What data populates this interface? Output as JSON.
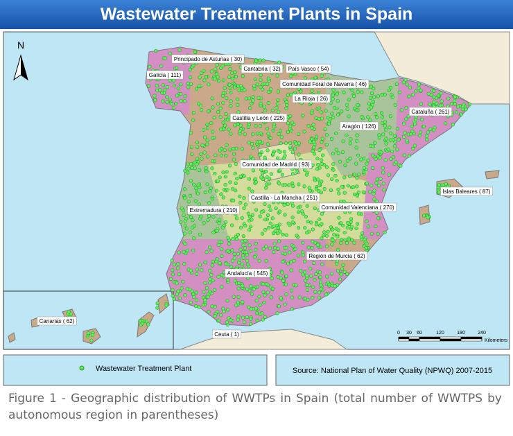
{
  "header": {
    "title": "Wastewater Treatment Plants in Spain"
  },
  "map": {
    "north_label": "N",
    "regions": [
      {
        "label": "Principado de Asturias ( 30)"
      },
      {
        "label": "Cantabria ( 32)"
      },
      {
        "label": "País Vasco ( 54)"
      },
      {
        "label": "Comunidad Foral de Navarra ( 46)"
      },
      {
        "label": "La Rioja ( 26)"
      },
      {
        "label": "Galicia ( 111)"
      },
      {
        "label": "Castilla y León ( 225)"
      },
      {
        "label": "Aragón ( 126)"
      },
      {
        "label": "Cataluña ( 261)"
      },
      {
        "label": "Comunidad de Madrid ( 93)"
      },
      {
        "label": "Islas Baleares ( 87)"
      },
      {
        "label": "Castilla - La Mancha ( 251)"
      },
      {
        "label": "Comunidad Valenciana ( 270)"
      },
      {
        "label": "Extremadura ( 210)"
      },
      {
        "label": "Región de Murcia ( 62)"
      },
      {
        "label": "Andalucía ( 545)"
      },
      {
        "label": "Canarias ( 62)"
      },
      {
        "label": "Ceuta ( 1)"
      }
    ],
    "scale_bar": {
      "ticks": [
        0,
        30,
        60,
        120,
        180,
        240
      ],
      "unit": "Kilometers"
    }
  },
  "legend": {
    "item": "Wastewater Treatment Plant"
  },
  "source": "Source: National Plan of Water Quality (NPWQ) 2007-2015",
  "caption": "Figure 1 - Geographic distribution of WWTPs in Spain (total number of WWTPS by autonomous region in parentheses)"
}
